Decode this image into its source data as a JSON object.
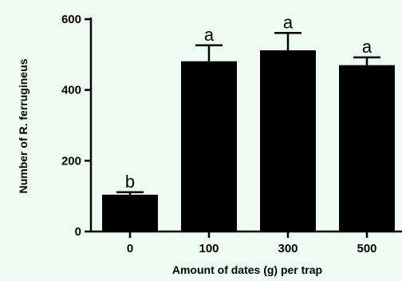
{
  "chart_data": {
    "type": "bar",
    "categories": [
      "0",
      "100",
      "300",
      "500"
    ],
    "values": [
      104,
      481,
      512,
      470
    ],
    "error": [
      7,
      45,
      49,
      22
    ],
    "significance_letters": [
      "b",
      "a",
      "a",
      "a"
    ],
    "ylabel": "Number of R. ferrugineus",
    "xlabel": "Amount of dates (g) per trap",
    "ylim": [
      0,
      600
    ],
    "yticks": [
      0,
      200,
      400,
      600
    ],
    "bar_color": "#000000",
    "grid": false,
    "legend": "none"
  }
}
